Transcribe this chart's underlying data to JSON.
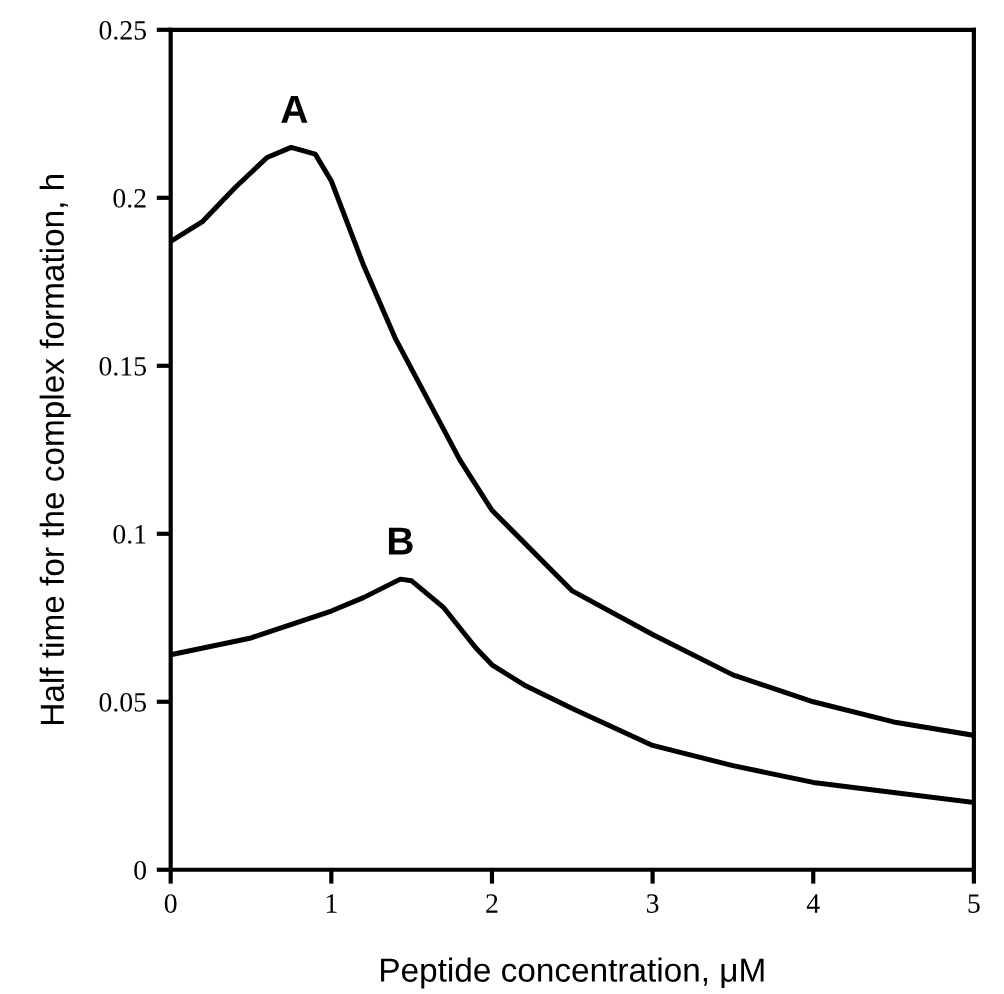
{
  "chart_data": {
    "type": "line",
    "xlabel": "Peptide concentration, μM",
    "ylabel": "Half time for the complex formation, h",
    "xlim": [
      0,
      5
    ],
    "ylim": [
      0,
      0.25
    ],
    "xticks": [
      0,
      1,
      2,
      3,
      4,
      5
    ],
    "yticks": [
      0,
      0.05,
      0.1,
      0.15,
      0.2,
      0.25
    ],
    "grid": false,
    "annotations": [
      {
        "text": "A",
        "x": 0.77,
        "y": 0.215
      },
      {
        "text": "B",
        "x": 1.43,
        "y": 0.0865
      }
    ],
    "series": [
      {
        "color": "#000000",
        "x": [
          0,
          0.2,
          0.4,
          0.6,
          0.75,
          0.9,
          1.0,
          1.2,
          1.4,
          1.6,
          1.8,
          2.0,
          2.5,
          3.0,
          3.5,
          4.0,
          4.5,
          5.0
        ],
        "values": [
          0.187,
          0.193,
          0.203,
          0.212,
          0.215,
          0.213,
          0.205,
          0.18,
          0.158,
          0.14,
          0.122,
          0.107,
          0.083,
          0.07,
          0.058,
          0.05,
          0.044,
          0.04
        ]
      },
      {
        "color": "#000000",
        "x": [
          0,
          0.5,
          1.0,
          1.2,
          1.43,
          1.5,
          1.7,
          1.9,
          2.0,
          2.2,
          2.5,
          3.0,
          3.5,
          4.0,
          4.5,
          5.0
        ],
        "values": [
          0.064,
          0.069,
          0.077,
          0.081,
          0.0865,
          0.086,
          0.078,
          0.066,
          0.061,
          0.055,
          0.048,
          0.037,
          0.031,
          0.026,
          0.023,
          0.02
        ]
      }
    ]
  }
}
